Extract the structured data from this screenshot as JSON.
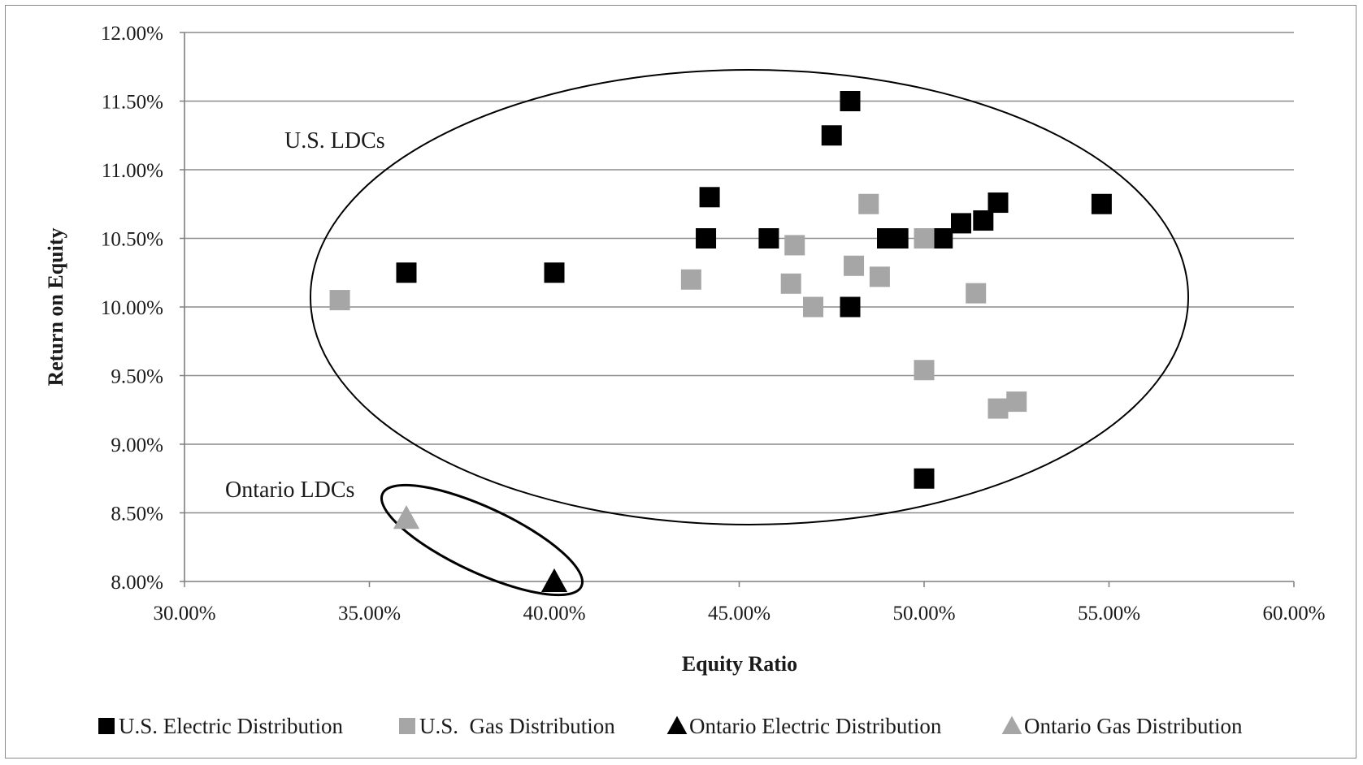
{
  "chart_data": {
    "type": "scatter",
    "title": "",
    "xlabel": "Equity Ratio",
    "ylabel": "Return on Equity",
    "xlim": [
      0.3,
      0.6
    ],
    "ylim": [
      0.08,
      0.12
    ],
    "x_ticks": [
      {
        "value": 0.3,
        "label": "30.00%"
      },
      {
        "value": 0.35,
        "label": "35.00%"
      },
      {
        "value": 0.4,
        "label": "40.00%"
      },
      {
        "value": 0.45,
        "label": "45.00%"
      },
      {
        "value": 0.5,
        "label": "50.00%"
      },
      {
        "value": 0.55,
        "label": "55.00%"
      },
      {
        "value": 0.6,
        "label": "60.00%"
      }
    ],
    "y_ticks": [
      {
        "value": 0.08,
        "label": "8.00%"
      },
      {
        "value": 0.085,
        "label": "8.50%"
      },
      {
        "value": 0.09,
        "label": "9.00%"
      },
      {
        "value": 0.095,
        "label": "9.50%"
      },
      {
        "value": 0.1,
        "label": "10.00%"
      },
      {
        "value": 0.105,
        "label": "10.50%"
      },
      {
        "value": 0.11,
        "label": "11.00%"
      },
      {
        "value": 0.115,
        "label": "11.50%"
      },
      {
        "value": 0.12,
        "label": "12.00%"
      }
    ],
    "grid": "horizontal",
    "legend_position": "bottom",
    "series": [
      {
        "name": "U.S. Electric Distribution",
        "marker": "square",
        "color": "#000000",
        "points": [
          {
            "x": 0.36,
            "y": 0.1025
          },
          {
            "x": 0.4,
            "y": 0.1025
          },
          {
            "x": 0.442,
            "y": 0.108
          },
          {
            "x": 0.441,
            "y": 0.105
          },
          {
            "x": 0.458,
            "y": 0.105
          },
          {
            "x": 0.475,
            "y": 0.1125
          },
          {
            "x": 0.48,
            "y": 0.115
          },
          {
            "x": 0.48,
            "y": 0.1
          },
          {
            "x": 0.49,
            "y": 0.105
          },
          {
            "x": 0.493,
            "y": 0.105
          },
          {
            "x": 0.505,
            "y": 0.105
          },
          {
            "x": 0.51,
            "y": 0.1061
          },
          {
            "x": 0.516,
            "y": 0.1063
          },
          {
            "x": 0.52,
            "y": 0.1076
          },
          {
            "x": 0.548,
            "y": 0.1075
          },
          {
            "x": 0.5,
            "y": 0.0875
          }
        ]
      },
      {
        "name": "U.S.  Gas Distribution",
        "marker": "square",
        "color": "#a6a6a6",
        "points": [
          {
            "x": 0.342,
            "y": 0.1005
          },
          {
            "x": 0.437,
            "y": 0.102
          },
          {
            "x": 0.464,
            "y": 0.1017
          },
          {
            "x": 0.465,
            "y": 0.1045
          },
          {
            "x": 0.47,
            "y": 0.1
          },
          {
            "x": 0.481,
            "y": 0.103
          },
          {
            "x": 0.485,
            "y": 0.1075
          },
          {
            "x": 0.488,
            "y": 0.1022
          },
          {
            "x": 0.5,
            "y": 0.105
          },
          {
            "x": 0.5,
            "y": 0.0954
          },
          {
            "x": 0.514,
            "y": 0.101
          },
          {
            "x": 0.52,
            "y": 0.0926
          },
          {
            "x": 0.525,
            "y": 0.0931
          }
        ]
      },
      {
        "name": "Ontario Electric Distribution",
        "marker": "triangle",
        "color": "#000000",
        "points": [
          {
            "x": 0.4,
            "y": 0.08
          }
        ]
      },
      {
        "name": "Ontario Gas Distribution",
        "marker": "triangle",
        "color": "#a6a6a6",
        "points": [
          {
            "x": 0.36,
            "y": 0.0846
          }
        ]
      }
    ],
    "annotations": [
      {
        "text": "U.S. LDCs"
      },
      {
        "text": "Ontario LDCs"
      }
    ]
  }
}
